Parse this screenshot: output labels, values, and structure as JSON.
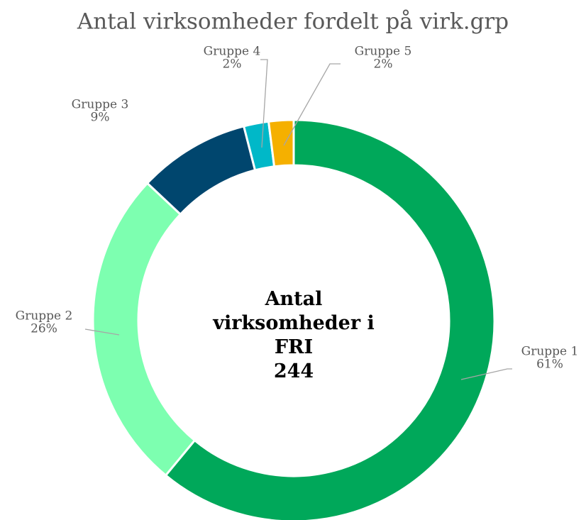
{
  "chart_data": {
    "type": "donut",
    "title": "Antal virksomheder fordelt på virk.grp",
    "categories": [
      "Gruppe 1",
      "Gruppe 2",
      "Gruppe 3",
      "Gruppe 4",
      "Gruppe 5"
    ],
    "values": [
      61,
      26,
      9,
      2,
      2
    ],
    "value_labels": [
      "61%",
      "26%",
      "9%",
      "2%",
      "2%"
    ],
    "colors": [
      "#00a85a",
      "#7dffb0",
      "#00466e",
      "#00b8c8",
      "#f5b000"
    ],
    "center_text": "Antal virksomheder i FRI",
    "center_value": 244
  }
}
